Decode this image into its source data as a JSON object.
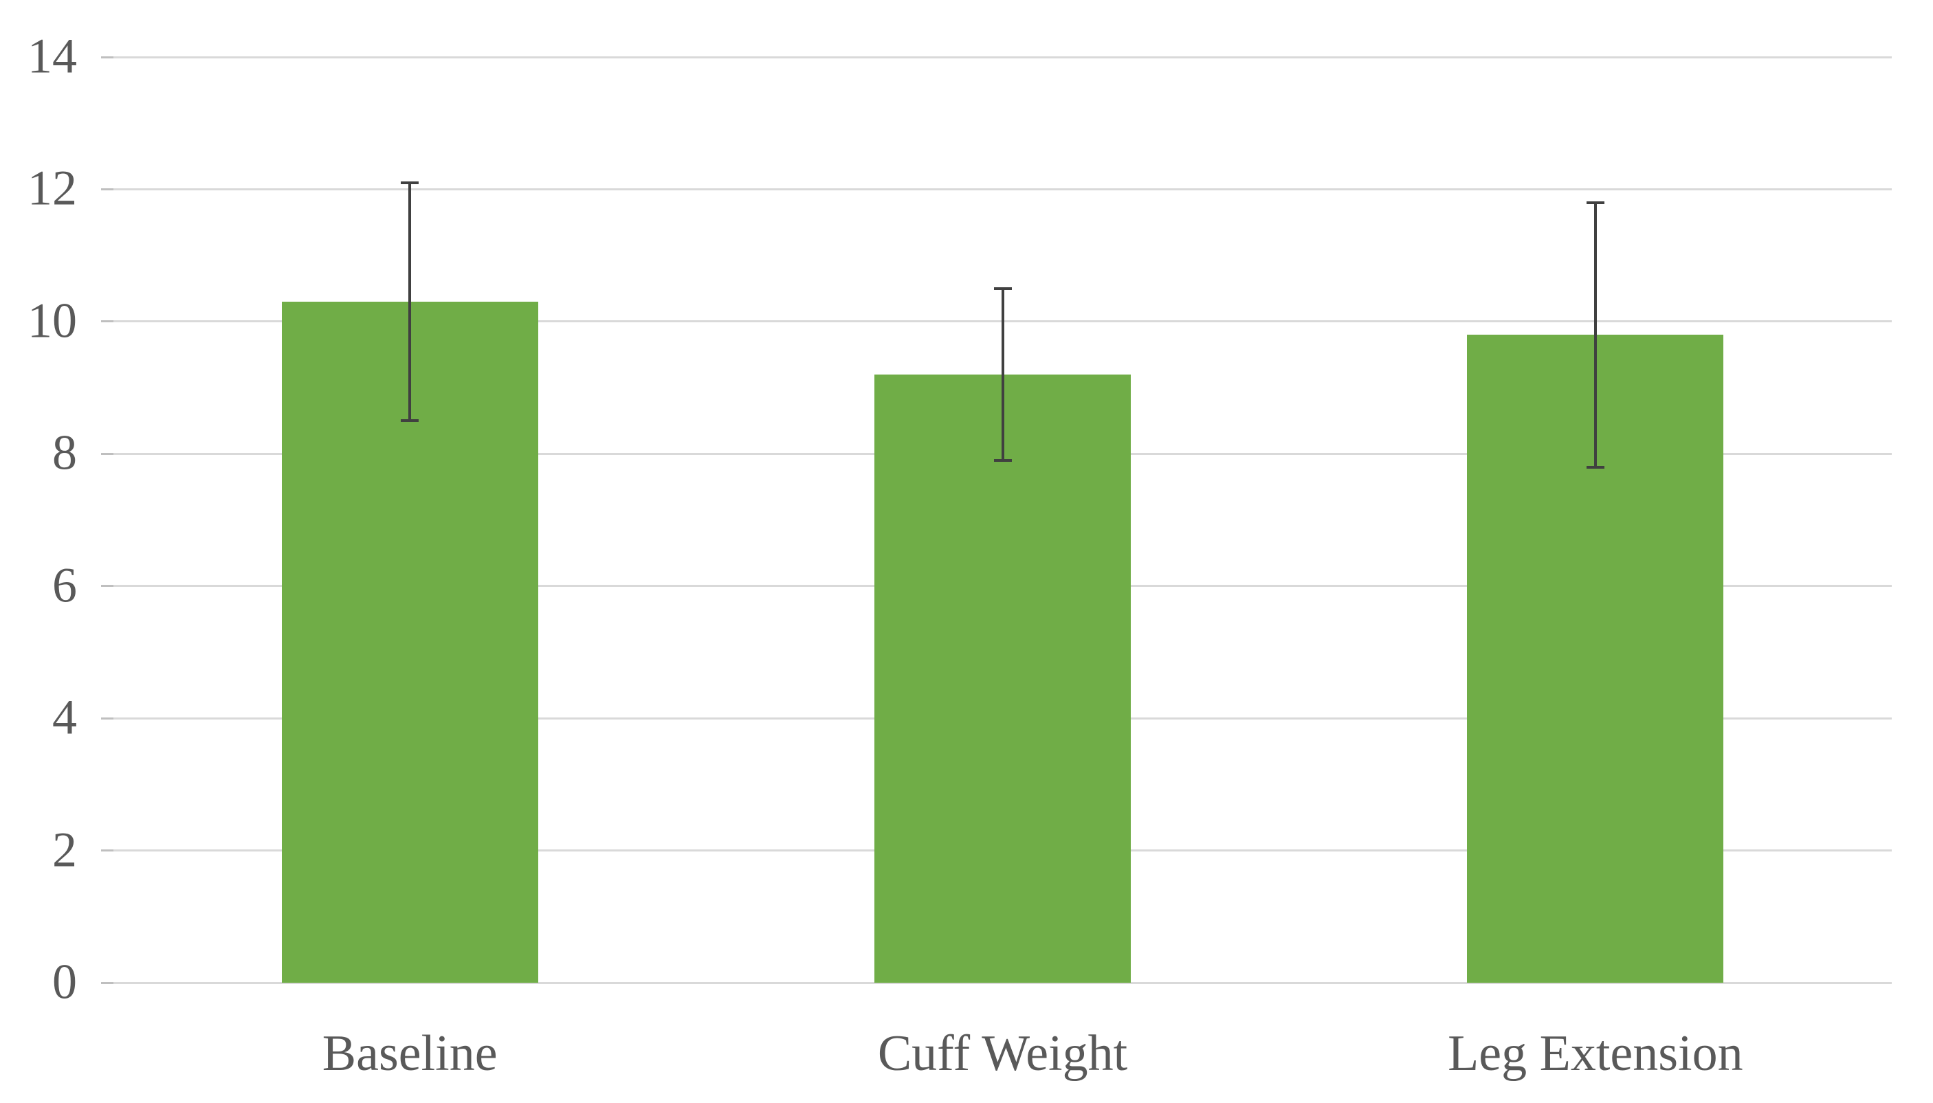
{
  "chart_data": {
    "type": "bar",
    "categories": [
      "Baseline",
      "Cuff Weight",
      "Leg Extension"
    ],
    "values": [
      10.3,
      9.2,
      9.8
    ],
    "error_bars": [
      1.8,
      1.3,
      2.0
    ],
    "title": "",
    "xlabel": "",
    "ylabel": "",
    "ylim": [
      0,
      14
    ],
    "yticks": [
      0,
      2,
      4,
      6,
      8,
      10,
      12,
      14
    ],
    "grid": true,
    "legend": false,
    "colors": {
      "bar_fill": "#70AD47",
      "gridline": "#D9D9D9",
      "tick_stub": "#BFBFBF",
      "error_bar": "#404040",
      "tick_label": "#595959",
      "category_label": "#595959",
      "background": "#FFFFFF"
    }
  }
}
